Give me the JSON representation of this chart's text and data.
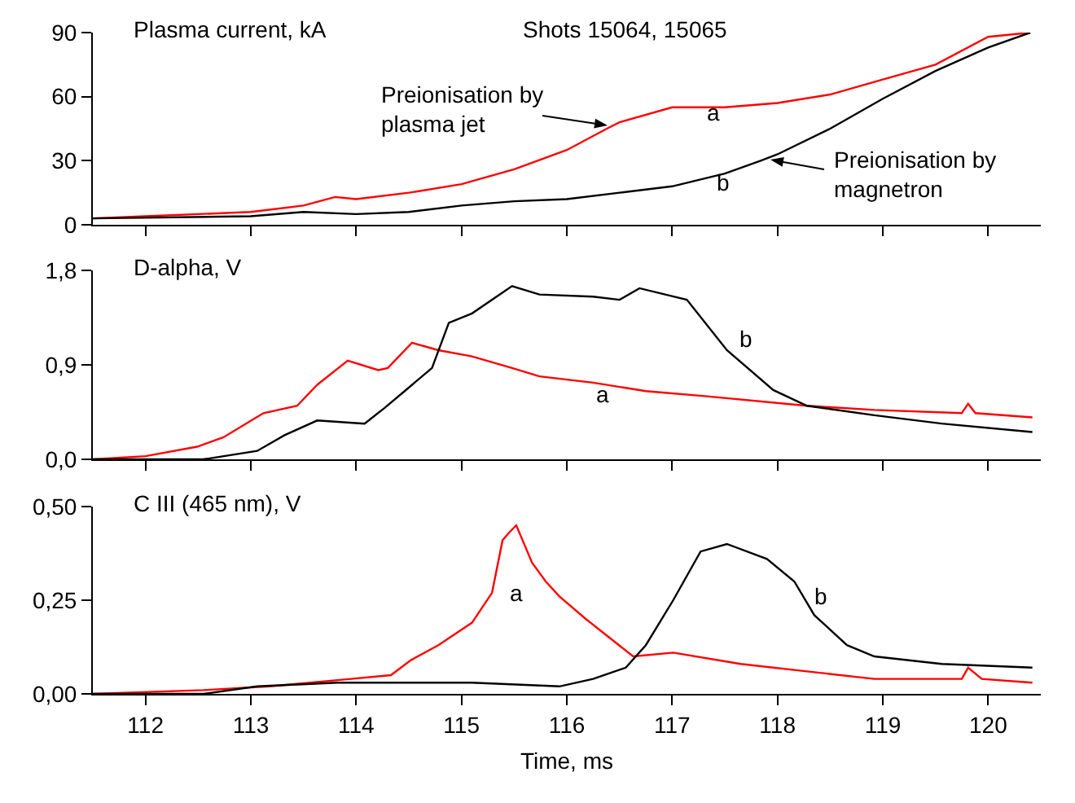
{
  "chart_data": [
    {
      "type": "line",
      "title": "Plasma current, kA",
      "annotations": [
        "Shots 15064, 15065",
        "Preionisation by plasma jet",
        "Preionisation by magnetron"
      ],
      "xlim": [
        111.5,
        120.5
      ],
      "xticks": [
        112,
        113,
        114,
        115,
        116,
        117,
        118,
        119,
        120
      ],
      "ylim": [
        0,
        90
      ],
      "yticks": [
        0,
        30,
        60,
        90
      ],
      "tick_labels": "y",
      "grid": false,
      "legend": false,
      "series": [
        {
          "name": "a",
          "color": "#ff0000",
          "x": [
            111.5,
            112,
            113,
            113.5,
            113.8,
            114,
            114.5,
            115,
            115.5,
            116,
            116.38,
            116.5,
            117,
            117.5,
            118,
            118.5,
            119,
            119.5,
            120,
            120.4
          ],
          "values": [
            3,
            4,
            6,
            9,
            13,
            12,
            15,
            19,
            26,
            35,
            45,
            48,
            55,
            55,
            57,
            61,
            68,
            75,
            88,
            90
          ]
        },
        {
          "name": "b",
          "color": "#000000",
          "x": [
            111.5,
            113,
            113.5,
            114,
            114.5,
            115,
            115.5,
            116,
            116.5,
            117,
            117.5,
            117.84,
            118,
            118.5,
            119,
            119.5,
            120,
            120.4
          ],
          "values": [
            3,
            4,
            6,
            5,
            6,
            9,
            11,
            12,
            15,
            18,
            24,
            30,
            33,
            45,
            59,
            72,
            83,
            90
          ]
        }
      ]
    },
    {
      "type": "line",
      "title": "D-alpha, V",
      "xlim": [
        111.5,
        120.5
      ],
      "xticks": [
        112,
        113,
        114,
        115,
        116,
        117,
        118,
        119,
        120
      ],
      "ylim": [
        0,
        1.8
      ],
      "yticks": [
        {
          "value": 0,
          "label": "0,0"
        },
        {
          "value": 0.9,
          "label": "0,9"
        },
        {
          "value": 1.8,
          "label": "1,8"
        }
      ],
      "tick_labels": "y",
      "grid": false,
      "legend": false,
      "series": [
        {
          "name": "a",
          "color": "#ff0000",
          "x": [
            111.5,
            112,
            112.49,
            112.74,
            113.12,
            113.44,
            113.63,
            113.92,
            114.21,
            114.3,
            114.53,
            114.78,
            115.1,
            115.48,
            115.74,
            116.25,
            116.75,
            117.33,
            118.28,
            118.92,
            119.75,
            119.81,
            119.88,
            120.42
          ],
          "values": [
            0,
            0.03,
            0.12,
            0.21,
            0.44,
            0.51,
            0.71,
            0.94,
            0.85,
            0.87,
            1.11,
            1.04,
            0.98,
            0.87,
            0.79,
            0.73,
            0.65,
            0.6,
            0.51,
            0.47,
            0.44,
            0.53,
            0.44,
            0.4
          ]
        },
        {
          "name": "b",
          "color": "#000000",
          "x": [
            111.5,
            112.55,
            113.06,
            113.32,
            113.63,
            114.08,
            114.27,
            114.46,
            114.72,
            114.88,
            115.1,
            115.48,
            115.74,
            116.25,
            116.5,
            116.69,
            117.14,
            117.52,
            117.96,
            118.28,
            118.92,
            119.56,
            120.42
          ],
          "values": [
            0,
            0,
            0.08,
            0.23,
            0.37,
            0.34,
            0.49,
            0.65,
            0.87,
            1.3,
            1.39,
            1.65,
            1.57,
            1.55,
            1.52,
            1.63,
            1.52,
            1.04,
            0.66,
            0.51,
            0.42,
            0.34,
            0.26
          ]
        }
      ]
    },
    {
      "type": "line",
      "title": "C III (465 nm), V",
      "xlabel": "Time, ms",
      "xlim": [
        111.5,
        120.5
      ],
      "xticks": [
        112,
        113,
        114,
        115,
        116,
        117,
        118,
        119,
        120
      ],
      "ylim": [
        0,
        0.5
      ],
      "yticks": [
        {
          "value": 0,
          "label": "0,00"
        },
        {
          "value": 0.25,
          "label": "0,25"
        },
        {
          "value": 0.5,
          "label": "0,50"
        }
      ],
      "grid": false,
      "legend": false,
      "series": [
        {
          "name": "a",
          "color": "#ff0000",
          "x": [
            111.5,
            112.55,
            113.18,
            113.95,
            114.33,
            114.52,
            114.78,
            115.1,
            115.29,
            115.39,
            115.45,
            115.52,
            115.58,
            115.67,
            115.8,
            115.93,
            116.18,
            116.63,
            117.01,
            117.65,
            118.28,
            118.92,
            119.75,
            119.81,
            119.94,
            120.42
          ],
          "values": [
            0,
            0.01,
            0.02,
            0.04,
            0.05,
            0.09,
            0.13,
            0.19,
            0.27,
            0.41,
            0.43,
            0.45,
            0.41,
            0.35,
            0.3,
            0.26,
            0.2,
            0.1,
            0.11,
            0.08,
            0.06,
            0.04,
            0.04,
            0.07,
            0.04,
            0.03
          ]
        },
        {
          "name": "b",
          "color": "#000000",
          "x": [
            111.5,
            112.55,
            113.06,
            113.82,
            115.1,
            115.93,
            116.25,
            116.56,
            116.75,
            117.01,
            117.27,
            117.52,
            117.9,
            118.16,
            118.35,
            118.66,
            118.92,
            119.56,
            120.42
          ],
          "values": [
            0,
            0,
            0.02,
            0.03,
            0.03,
            0.02,
            0.04,
            0.07,
            0.13,
            0.25,
            0.38,
            0.4,
            0.36,
            0.3,
            0.21,
            0.13,
            0.1,
            0.08,
            0.07
          ]
        }
      ]
    }
  ]
}
